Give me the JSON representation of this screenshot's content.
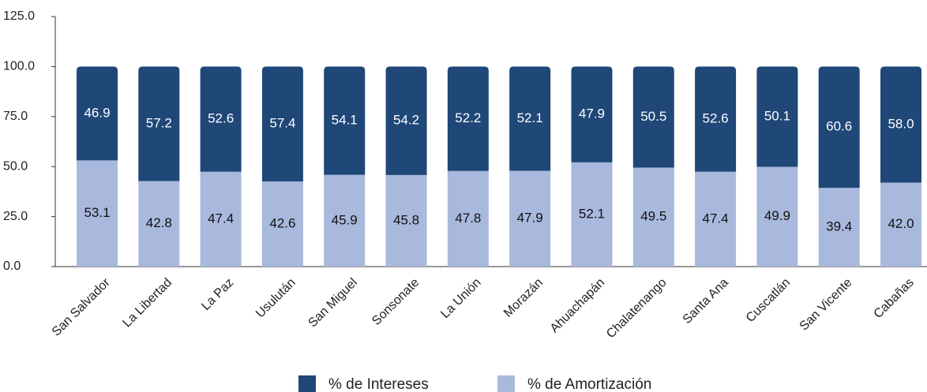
{
  "chart_data": {
    "type": "stacked_bar",
    "categories": [
      "San Salvador",
      "La Libertad",
      "La Paz",
      "Usulután",
      "San Miguel",
      "Sonsonate",
      "La Unión",
      "Morazán",
      "Ahuachapán",
      "Chalatenango",
      "Santa Ana",
      "Cuscatlán",
      "San Vicente",
      "Cabañas"
    ],
    "series": [
      {
        "name": "% de Intereses",
        "color": "#1f4778",
        "values": [
          46.9,
          57.2,
          52.6,
          57.4,
          54.1,
          54.2,
          52.2,
          52.1,
          47.9,
          50.5,
          52.6,
          50.1,
          60.6,
          58
        ],
        "value_labels": [
          "46.9",
          "57.2",
          "52.6",
          "57.4",
          "54.1",
          "54.2",
          "52.2",
          "52.1",
          "47.9",
          "50.5",
          "52.6",
          "50.1",
          "60.6",
          "58.0"
        ]
      },
      {
        "name": "% de Amortización",
        "color": "#a9b8dd",
        "values": [
          53.1,
          42.8,
          47.4,
          42.6,
          45.9,
          45.8,
          47.8,
          47.9,
          52.1,
          49.5,
          47.4,
          49.9,
          39.4,
          42
        ],
        "value_labels": [
          "53.1",
          "42.8",
          "47.4",
          "42.6",
          "45.9",
          "45.8",
          "47.8",
          "47.9",
          "52.1",
          "49.5",
          "47.4",
          "49.9",
          "39.4",
          "42.0"
        ]
      }
    ],
    "ylim": [
      0,
      125
    ],
    "yticks": [
      {
        "value": 0,
        "label": "0.0"
      },
      {
        "value": 25,
        "label": "25.0"
      },
      {
        "value": 50,
        "label": "50.0"
      },
      {
        "value": 75,
        "label": "75.0"
      },
      {
        "value": 100,
        "label": "100.0"
      },
      {
        "value": 125,
        "label": "125.0"
      }
    ],
    "legend": "bottom"
  }
}
